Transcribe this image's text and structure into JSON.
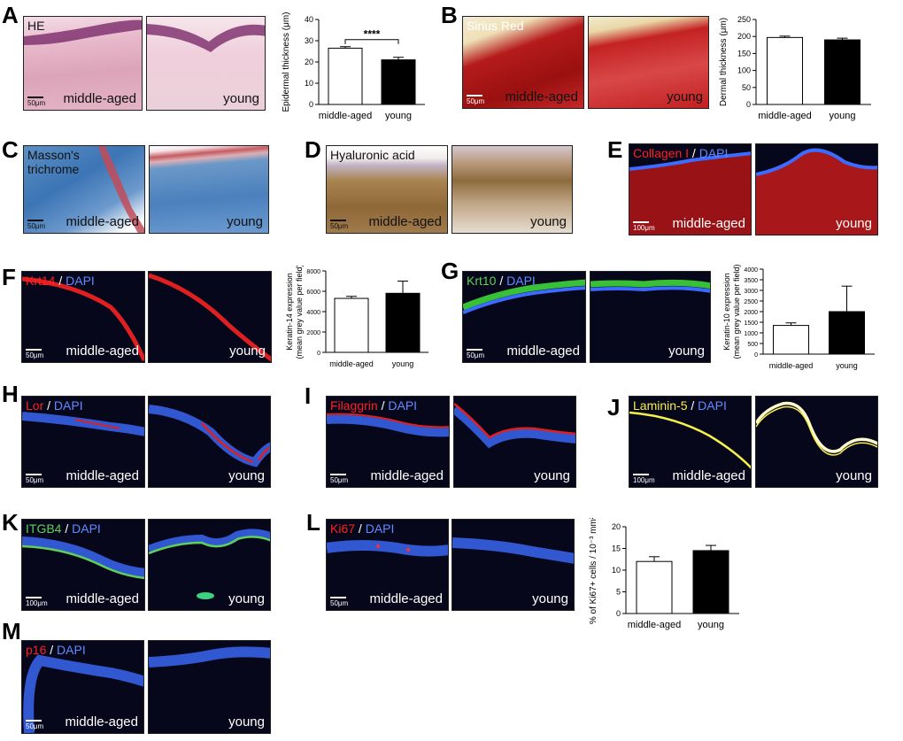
{
  "panels": {
    "A": {
      "letter": "A",
      "stain": "HE",
      "left": "middle-aged",
      "right": "young",
      "scale": "50μm"
    },
    "B": {
      "letter": "B",
      "stain": "Sirius Red",
      "left": "middle-aged",
      "right": "young",
      "scale": "50μm"
    },
    "C": {
      "letter": "C",
      "stain_l1": "Masson's",
      "stain_l2": "trichrome",
      "left": "middle-aged",
      "right": "young",
      "scale": "50μm"
    },
    "D": {
      "letter": "D",
      "stain": "Hyaluronic acid",
      "left": "middle-aged",
      "right": "young",
      "scale": "50μm"
    },
    "E": {
      "letter": "E",
      "marker": "Collagen I",
      "sep": " / ",
      "dapi": "DAPI",
      "left": "middle-aged",
      "right": "young",
      "scale": "100μm"
    },
    "F": {
      "letter": "F",
      "marker": "Krt14",
      "sep": " / ",
      "dapi": "DAPI",
      "left": "middle-aged",
      "right": "young",
      "scale": "50μm"
    },
    "G": {
      "letter": "G",
      "marker": "Krt10",
      "sep": " / ",
      "dapi": "DAPI",
      "left": "middle-aged",
      "right": "young",
      "scale": "50μm"
    },
    "H": {
      "letter": "H",
      "marker": "Lor",
      "sep": " / ",
      "dapi": "DAPI",
      "left": "middle-aged",
      "right": "young",
      "scale": "50μm"
    },
    "I": {
      "letter": "I",
      "marker": "Filaggrin",
      "sep": " / ",
      "dapi": "DAPI",
      "left": "middle-aged",
      "right": "young",
      "scale": "50μm"
    },
    "J": {
      "letter": "J",
      "marker": "Laminin-5",
      "sep": " / ",
      "dapi": "DAPI",
      "left": "middle-aged",
      "right": "young",
      "scale": "100μm"
    },
    "K": {
      "letter": "K",
      "marker": "ITGB4",
      "sep": " / ",
      "dapi": "DAPI",
      "left": "middle-aged",
      "right": "young",
      "scale": "100μm"
    },
    "L": {
      "letter": "L",
      "marker": "Ki67",
      "sep": " / ",
      "dapi": "DAPI",
      "left": "middle-aged",
      "right": "young",
      "scale": "50μm"
    },
    "M": {
      "letter": "M",
      "marker": "p16",
      "sep": " / ",
      "dapi": "DAPI",
      "left": "middle-aged",
      "right": "young",
      "scale": "50μm"
    }
  },
  "colors": {
    "he_pink": "#e6b6c8",
    "sirius_red": "#b41a1a",
    "masson_blue": "#3b78b8",
    "ha_brown": "#9b7246",
    "marker_red": "#ff2020",
    "marker_green": "#5fd05a",
    "marker_yellow": "#f5f04a",
    "dapi_blue": "#3c6cff",
    "fluo_bg": "#07071c"
  },
  "chart_data": [
    {
      "id": "A",
      "type": "bar",
      "categories": [
        "middle-aged",
        "young"
      ],
      "values": [
        26.5,
        21
      ],
      "errors": [
        0.7,
        1.2
      ],
      "ylabel": "Epidermal thickness (μm)",
      "ylim": [
        0,
        40
      ],
      "yticks": [
        0,
        10,
        20,
        30,
        40
      ],
      "annotation": "****",
      "fills": [
        "#ffffff",
        "#000000"
      ]
    },
    {
      "id": "B",
      "type": "bar",
      "categories": [
        "middle-aged",
        "young"
      ],
      "values": [
        197,
        190
      ],
      "errors": [
        4,
        5
      ],
      "ylabel": "Dermal thickness (μm)",
      "ylim": [
        0,
        250
      ],
      "yticks": [
        0,
        50,
        100,
        150,
        200,
        250
      ],
      "fills": [
        "#ffffff",
        "#000000"
      ]
    },
    {
      "id": "F",
      "type": "bar",
      "categories": [
        "middle-aged",
        "young"
      ],
      "values": [
        5300,
        5800
      ],
      "errors": [
        200,
        1200
      ],
      "ylabel": "Keratin-14 expression",
      "ylabel2": "(mean grey value per field)",
      "ylim": [
        0,
        8000
      ],
      "yticks": [
        0,
        2000,
        4000,
        6000,
        8000
      ],
      "fills": [
        "#ffffff",
        "#000000"
      ]
    },
    {
      "id": "G",
      "type": "bar",
      "categories": [
        "middle-aged",
        "young"
      ],
      "values": [
        1350,
        2000
      ],
      "errors": [
        120,
        1200
      ],
      "ylabel": "Keratin-10 expression",
      "ylabel2": "(mean grey value per field)",
      "ylim": [
        0,
        4000
      ],
      "yticks": [
        0,
        500,
        1000,
        1500,
        2000,
        2500,
        3000,
        3500,
        4000
      ],
      "fills": [
        "#ffffff",
        "#000000"
      ]
    },
    {
      "id": "L",
      "type": "bar",
      "categories": [
        "middle-aged",
        "young"
      ],
      "values": [
        12,
        14.5
      ],
      "errors": [
        1.1,
        1.2
      ],
      "ylabel": "% of Ki67+ cells / 10⁻³ mm²",
      "ylim": [
        0,
        20
      ],
      "yticks": [
        0,
        5,
        10,
        15,
        20
      ],
      "fills": [
        "#ffffff",
        "#000000"
      ]
    }
  ]
}
